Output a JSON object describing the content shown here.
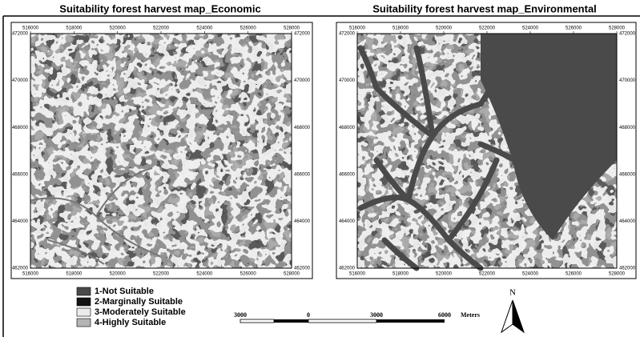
{
  "maps": [
    {
      "title": "Suitability forest harvest map_Economic",
      "x_ticks": [
        "516000",
        "518000",
        "520000",
        "522000",
        "524000",
        "526000",
        "528000"
      ],
      "y_ticks": [
        "472000",
        "470000",
        "468000",
        "466000",
        "464000",
        "462000"
      ]
    },
    {
      "title": "Suitability forest harvest map_Environmental",
      "x_ticks": [
        "516000",
        "518000",
        "520000",
        "522000",
        "524000",
        "526000",
        "528000"
      ],
      "y_ticks": [
        "472000",
        "470000",
        "468000",
        "466000",
        "464000",
        "462000"
      ]
    }
  ],
  "legend": [
    {
      "label": "1-Not Suitable",
      "color": "#4a4a4a"
    },
    {
      "label": "2-Marginally Suitable",
      "color": "#141414"
    },
    {
      "label": "3-Moderately Suitable",
      "color": "#ececec"
    },
    {
      "label": "4-Highly Suitable",
      "color": "#b4b4b4"
    }
  ],
  "scale_bar": {
    "labels": [
      "3000",
      "0",
      "3000",
      "6000"
    ],
    "unit": "Meters"
  },
  "north": "N"
}
